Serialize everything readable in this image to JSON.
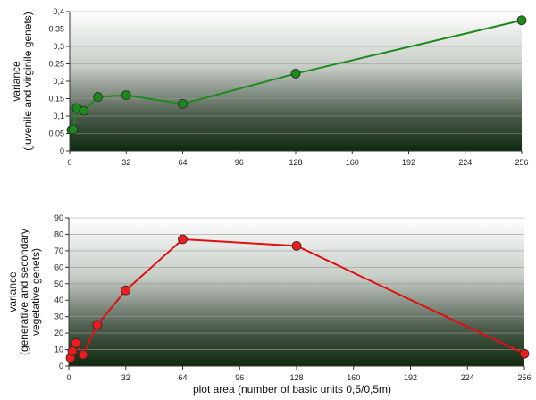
{
  "chart_data": [
    {
      "type": "line",
      "ylabel": [
        "variance",
        "(juvenile and virginile genets)"
      ],
      "xlim": [
        0,
        256
      ],
      "ylim": [
        0,
        0.4
      ],
      "x_ticks": [
        "0",
        "32",
        "64",
        "96",
        "128",
        "160",
        "192",
        "224",
        "256"
      ],
      "y_ticks": [
        "0",
        "0,05",
        "0,1",
        "0,15",
        "0,2",
        "0,25",
        "0,3",
        "0,35",
        "0,4"
      ],
      "grid": true,
      "series": [
        {
          "color": "#1e8a1e",
          "marker_color": "#1a8a1a",
          "x": [
            1,
            2,
            4,
            8,
            16,
            32,
            64,
            128,
            256
          ],
          "y": [
            0.06,
            0.062,
            0.123,
            0.115,
            0.155,
            0.16,
            0.135,
            0.222,
            0.375
          ]
        }
      ]
    },
    {
      "type": "line",
      "ylabel": [
        "variance",
        "(generative and secondary",
        "vegetative genets)"
      ],
      "xlabel": "plot area (number of basic units 0,5/0,5m)",
      "xlim": [
        0,
        256
      ],
      "ylim": [
        0,
        90
      ],
      "x_ticks": [
        "0",
        "32",
        "64",
        "96",
        "128",
        "160",
        "192",
        "224",
        "256"
      ],
      "y_ticks": [
        "0",
        "10",
        "20",
        "30",
        "40",
        "50",
        "60",
        "70",
        "80",
        "90"
      ],
      "grid": true,
      "series": [
        {
          "color": "#e01010",
          "marker_color": "#ee1c1c",
          "x": [
            1,
            2,
            4,
            8,
            16,
            32,
            64,
            128,
            256
          ],
          "y": [
            5,
            9,
            14,
            7,
            25,
            46,
            77,
            73,
            7.5
          ]
        }
      ]
    }
  ]
}
